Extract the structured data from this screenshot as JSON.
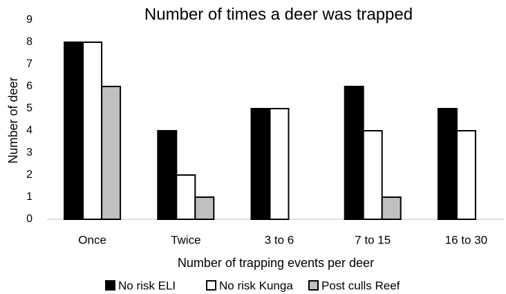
{
  "chart_data": {
    "type": "bar",
    "title": "Number of times a deer was trapped",
    "x_label": "Number of trapping events per deer",
    "y_label": "Number of deer",
    "categories": [
      "Once",
      "Twice",
      "3 to 6",
      "7 to 15",
      "16 to 30"
    ],
    "series": [
      {
        "name": "No risk ELI",
        "color": "#000000",
        "values": [
          8,
          4,
          5,
          6,
          5
        ]
      },
      {
        "name": "No risk Kunga",
        "color": "#ffffff",
        "values": [
          8,
          2,
          5,
          4,
          4
        ]
      },
      {
        "name": "Post culls Reef",
        "color": "#bfbfbf",
        "values": [
          6,
          1,
          0,
          1,
          0
        ]
      }
    ],
    "ylim": [
      0,
      9
    ],
    "yticks": [
      0,
      1,
      2,
      3,
      4,
      5,
      6,
      7,
      8,
      9
    ],
    "grid": false,
    "legend": "bottom"
  }
}
